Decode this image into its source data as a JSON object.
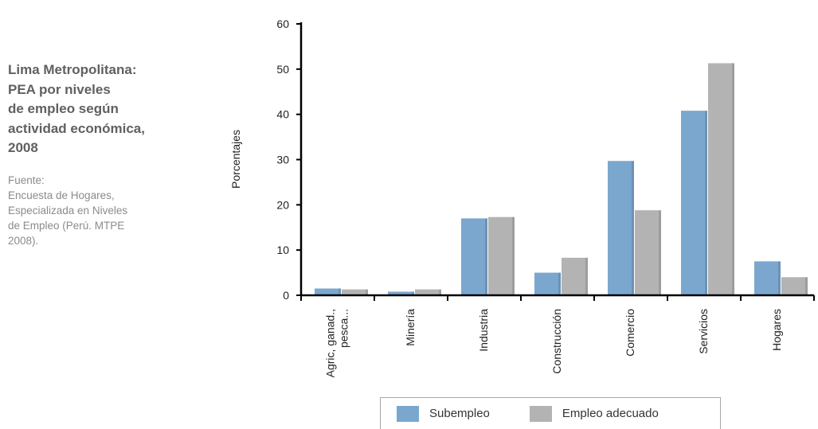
{
  "side": {
    "title": "Lima Metropolitana:\nPEA por niveles\nde empleo según\nactividad económica,\n2008",
    "source": "Fuente:\nEncuesta de Hogares,\nEspecializada en Niveles\nde Empleo (Perú. MTPE\n2008)."
  },
  "chart_data": {
    "type": "bar",
    "title": "",
    "xlabel": "",
    "ylabel": "Porcentajes",
    "ylim": [
      0,
      60
    ],
    "yticks": [
      0,
      10,
      20,
      30,
      40,
      50,
      60
    ],
    "grid": false,
    "legend_position": "bottom",
    "categories": [
      "Agric, ganad.,\npesca...",
      "Minería",
      "Industria",
      "Construcción",
      "Comercio",
      "Servicios",
      "Hogares"
    ],
    "series": [
      {
        "name": "Subempleo",
        "color": "#7ba7cf",
        "values": [
          1.5,
          0.8,
          17,
          5,
          29.7,
          40.8,
          7.5
        ]
      },
      {
        "name": "Empleo adecuado",
        "color": "#b3b3b3",
        "values": [
          1.3,
          1.3,
          17.3,
          8.3,
          18.8,
          51.3,
          4.0
        ]
      }
    ]
  }
}
